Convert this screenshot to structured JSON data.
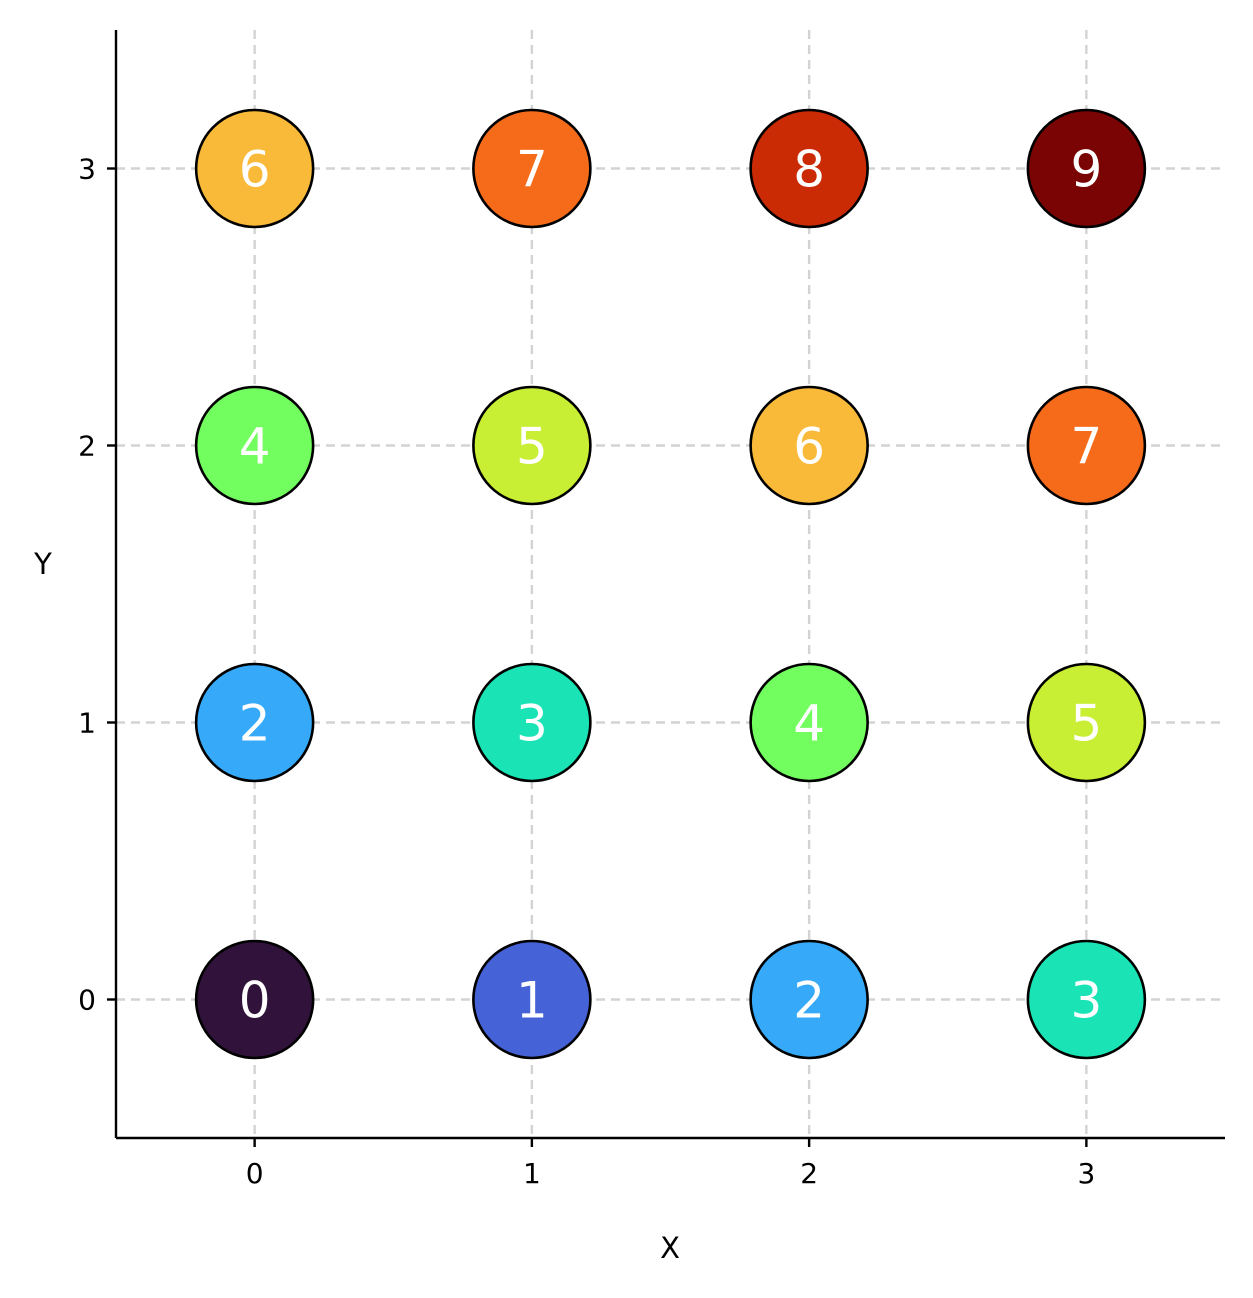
{
  "chart_data": {
    "type": "scatter",
    "title": "",
    "xlabel": "X",
    "ylabel": "Y",
    "xlim": [
      -0.5,
      3.5
    ],
    "ylim": [
      -0.5,
      3.5
    ],
    "xticks": [
      0,
      1,
      2,
      3
    ],
    "yticks": [
      0,
      1,
      2,
      3
    ],
    "xtick_labels": [
      "0",
      "1",
      "2",
      "3"
    ],
    "ytick_labels": [
      "0",
      "1",
      "2",
      "3"
    ],
    "grid": true,
    "grid_style": "dashed",
    "points": [
      {
        "x": 0,
        "y": 0,
        "value": 0,
        "label": "0",
        "color": "#30123b"
      },
      {
        "x": 1,
        "y": 0,
        "value": 1,
        "label": "1",
        "color": "#4662d7"
      },
      {
        "x": 2,
        "y": 0,
        "value": 2,
        "label": "2",
        "color": "#36aaf9"
      },
      {
        "x": 3,
        "y": 0,
        "value": 3,
        "label": "3",
        "color": "#1ae4b6"
      },
      {
        "x": 0,
        "y": 1,
        "value": 2,
        "label": "2",
        "color": "#36aaf9"
      },
      {
        "x": 1,
        "y": 1,
        "value": 3,
        "label": "3",
        "color": "#1ae4b6"
      },
      {
        "x": 2,
        "y": 1,
        "value": 4,
        "label": "4",
        "color": "#72fe5e"
      },
      {
        "x": 3,
        "y": 1,
        "value": 5,
        "label": "5",
        "color": "#c8ef34"
      },
      {
        "x": 0,
        "y": 2,
        "value": 4,
        "label": "4",
        "color": "#72fe5e"
      },
      {
        "x": 1,
        "y": 2,
        "value": 5,
        "label": "5",
        "color": "#c8ef34"
      },
      {
        "x": 2,
        "y": 2,
        "value": 6,
        "label": "6",
        "color": "#faba39"
      },
      {
        "x": 3,
        "y": 2,
        "value": 7,
        "label": "7",
        "color": "#f66b19"
      },
      {
        "x": 0,
        "y": 3,
        "value": 6,
        "label": "6",
        "color": "#faba39"
      },
      {
        "x": 1,
        "y": 3,
        "value": 7,
        "label": "7",
        "color": "#f66b19"
      },
      {
        "x": 2,
        "y": 3,
        "value": 8,
        "label": "8",
        "color": "#ca2a04"
      },
      {
        "x": 3,
        "y": 3,
        "value": 9,
        "label": "9",
        "color": "#7a0403"
      }
    ]
  }
}
